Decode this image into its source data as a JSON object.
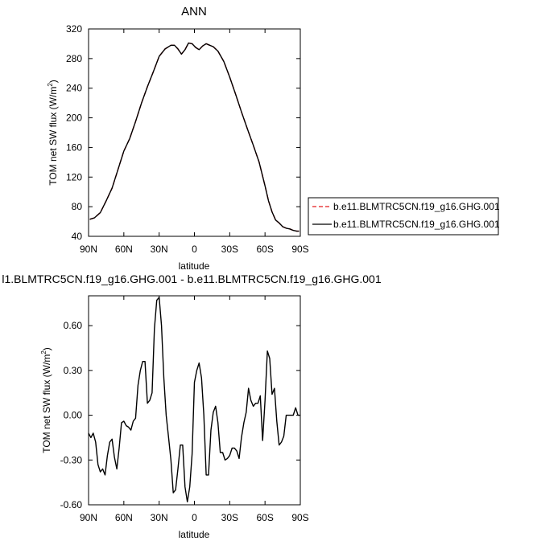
{
  "chart_data": [
    {
      "type": "line",
      "title": "ANN",
      "xlabel": "latitude",
      "ylabel_main": "TOM net SW flux (W/m",
      "ylabel_sup": "2",
      "ylabel_tail": ")",
      "xlim": [
        90,
        -90
      ],
      "ylim": [
        40,
        320
      ],
      "xticks": [
        90,
        60,
        30,
        0,
        -30,
        -60,
        -90
      ],
      "xtick_labels": [
        "90N",
        "60N",
        "30N",
        "0",
        "30S",
        "60S",
        "90S"
      ],
      "yticks": [
        40,
        80,
        120,
        160,
        200,
        240,
        280,
        320
      ],
      "ytick_labels": [
        "40",
        "80",
        "120",
        "160",
        "200",
        "240",
        "280",
        "320"
      ],
      "legend_placement": "right",
      "x": [
        89,
        85,
        80,
        75,
        70,
        65,
        60,
        55,
        50,
        45,
        40,
        35,
        30,
        25,
        20,
        17,
        14,
        11,
        8,
        5,
        2,
        -1,
        -4,
        -7,
        -10,
        -13,
        -16,
        -20,
        -25,
        -30,
        -35,
        -40,
        -45,
        -50,
        -55,
        -60,
        -63,
        -66,
        -69,
        -72,
        -75,
        -78,
        -81,
        -84,
        -87,
        -89
      ],
      "series": [
        {
          "name": "b.e11.BLMTRC5CN.f19_g16.GHG.001",
          "color": "#e41a1c",
          "dash": "dashed",
          "values": [
            63,
            65,
            72,
            88,
            105,
            130,
            155,
            172,
            195,
            220,
            242,
            262,
            283,
            293,
            298,
            298,
            293,
            286,
            292,
            301,
            300,
            295,
            292,
            297,
            300,
            298,
            296,
            290,
            276,
            255,
            232,
            208,
            185,
            163,
            140,
            108,
            88,
            73,
            62,
            58,
            53,
            51,
            50,
            48,
            47,
            47
          ]
        },
        {
          "name": "b.e11.BLMTRC5CN.f19_g16.GHG.001",
          "color": "#000000",
          "dash": "solid",
          "values": [
            63,
            65,
            72,
            88,
            105,
            130,
            155,
            172,
            195,
            220,
            242,
            262,
            283,
            293,
            298,
            298,
            293,
            286,
            292,
            301,
            300,
            295,
            292,
            297,
            300,
            298,
            296,
            290,
            276,
            255,
            232,
            208,
            185,
            163,
            140,
            108,
            88,
            73,
            62,
            58,
            53,
            51,
            50,
            48,
            47,
            47
          ]
        }
      ]
    },
    {
      "type": "line",
      "title": "l1.BLMTRC5CN.f19_g16.GHG.001 - b.e11.BLMTRC5CN.f19_g16.GHG.001",
      "xlabel": "latitude",
      "ylabel_main": "TOM net SW flux (W/m",
      "ylabel_sup": "2",
      "ylabel_tail": ")",
      "xlim": [
        90,
        -90
      ],
      "ylim": [
        -0.6,
        0.8
      ],
      "xticks": [
        90,
        60,
        30,
        0,
        -30,
        -60,
        -90
      ],
      "xtick_labels": [
        "90N",
        "60N",
        "30N",
        "0",
        "30S",
        "60S",
        "90S"
      ],
      "yticks": [
        -0.6,
        -0.3,
        0.0,
        0.3,
        0.6
      ],
      "ytick_labels": [
        "-0.60",
        "-0.30",
        "0.00",
        "0.30",
        "0.60"
      ],
      "x": [
        90,
        88,
        86,
        84,
        82,
        80,
        78,
        76,
        74,
        72,
        70,
        68,
        66,
        64,
        62,
        60,
        58,
        56,
        54,
        52,
        50,
        48,
        46,
        44,
        42,
        40,
        38,
        36,
        34,
        32,
        30,
        28,
        26,
        24,
        22,
        20,
        18,
        16,
        14,
        12,
        10,
        8,
        6,
        4,
        2,
        0,
        -2,
        -4,
        -6,
        -8,
        -10,
        -12,
        -14,
        -16,
        -18,
        -20,
        -22,
        -24,
        -26,
        -28,
        -30,
        -32,
        -34,
        -36,
        -38,
        -40,
        -42,
        -44,
        -46,
        -48,
        -50,
        -52,
        -54,
        -56,
        -58,
        -60,
        -62,
        -64,
        -66,
        -68,
        -70,
        -72,
        -74,
        -76,
        -78,
        -80,
        -82,
        -84,
        -86,
        -88,
        -90
      ],
      "series": [
        {
          "name": "",
          "color": "#000000",
          "values": [
            -0.12,
            -0.15,
            -0.12,
            -0.18,
            -0.33,
            -0.38,
            -0.36,
            -0.4,
            -0.27,
            -0.18,
            -0.16,
            -0.28,
            -0.36,
            -0.22,
            -0.05,
            -0.04,
            -0.07,
            -0.08,
            -0.1,
            -0.04,
            -0.02,
            0.2,
            0.3,
            0.36,
            0.36,
            0.08,
            0.1,
            0.15,
            0.58,
            0.77,
            0.79,
            0.6,
            0.25,
            0.0,
            -0.15,
            -0.3,
            -0.52,
            -0.5,
            -0.36,
            -0.2,
            -0.2,
            -0.48,
            -0.58,
            -0.48,
            -0.26,
            0.22,
            0.3,
            0.35,
            0.25,
            0.0,
            -0.4,
            -0.4,
            -0.1,
            0.02,
            0.06,
            -0.05,
            -0.25,
            -0.25,
            -0.3,
            -0.29,
            -0.27,
            -0.22,
            -0.22,
            -0.24,
            -0.29,
            -0.15,
            -0.05,
            0.02,
            0.18,
            0.1,
            0.06,
            0.08,
            0.08,
            0.13,
            -0.17,
            0.1,
            0.43,
            0.38,
            0.14,
            0.18,
            -0.04,
            -0.2,
            -0.18,
            -0.14,
            0.0,
            0.0,
            0.0,
            0.0,
            0.05,
            0.0,
            0.0
          ]
        }
      ]
    }
  ]
}
